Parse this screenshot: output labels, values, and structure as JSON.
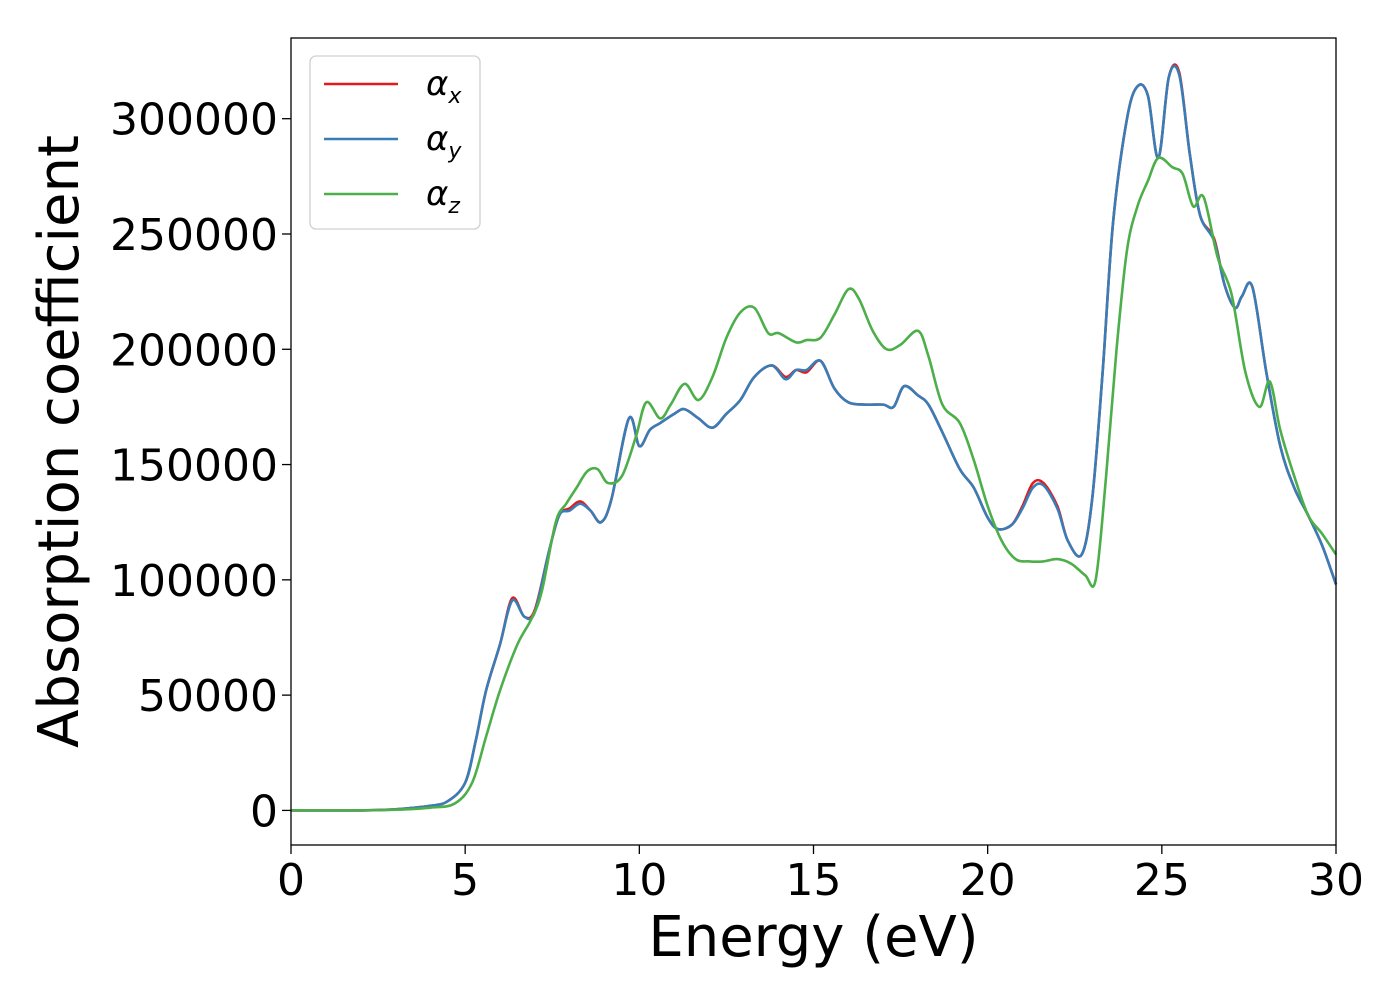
{
  "chart_data": {
    "type": "line",
    "xlabel": "Energy (eV)",
    "ylabel": "Absorption coefficient",
    "xlim": [
      0,
      30
    ],
    "ylim": [
      -15000,
      335000
    ],
    "xticks": [
      0,
      5,
      10,
      15,
      20,
      25,
      30
    ],
    "xtick_labels": [
      "0",
      "5",
      "10",
      "15",
      "20",
      "25",
      "30"
    ],
    "yticks": [
      0,
      50000,
      100000,
      150000,
      200000,
      250000,
      300000
    ],
    "ytick_labels": [
      "0",
      "50000",
      "100000",
      "150000",
      "200000",
      "250000",
      "300000"
    ],
    "grid": false,
    "legend_position": "top-left",
    "series": [
      {
        "name": "α",
        "subscript": "x",
        "color": "#e41a1c",
        "x": [
          0,
          2,
          3,
          4,
          4.5,
          5.0,
          5.3,
          5.6,
          6.0,
          6.35,
          6.7,
          7.0,
          7.4,
          7.7,
          8.0,
          8.3,
          8.6,
          8.9,
          9.2,
          9.7,
          10.0,
          10.3,
          10.6,
          11.0,
          11.3,
          11.7,
          12.1,
          12.5,
          12.9,
          13.3,
          13.8,
          14.2,
          14.5,
          14.8,
          15.2,
          15.6,
          16.0,
          16.5,
          17.0,
          17.3,
          17.6,
          18.0,
          18.3,
          18.7,
          19.2,
          19.6,
          20.0,
          20.3,
          20.7,
          21.0,
          21.3,
          21.6,
          22.0,
          22.3,
          22.7,
          23.0,
          23.3,
          23.6,
          24.0,
          24.3,
          24.6,
          24.9,
          25.2,
          25.5,
          25.8,
          26.1,
          26.5,
          26.8,
          27.1,
          27.3,
          27.6,
          28.0,
          28.4,
          28.8,
          29.2,
          29.6,
          30.0
        ],
        "y": [
          0,
          0,
          500,
          2000,
          4000,
          12000,
          30000,
          52000,
          72000,
          92000,
          84000,
          87000,
          112000,
          128000,
          131000,
          134000,
          130000,
          125000,
          135000,
          170000,
          158000,
          165000,
          168000,
          172000,
          174000,
          170000,
          166000,
          172000,
          178000,
          188000,
          193000,
          188000,
          191000,
          190000,
          195000,
          183000,
          177000,
          176000,
          176000,
          175000,
          184000,
          180000,
          176000,
          164000,
          148000,
          140000,
          127000,
          122000,
          124000,
          132000,
          142000,
          142000,
          132000,
          117000,
          111000,
          135000,
          190000,
          255000,
          300000,
          314000,
          310000,
          283000,
          318000,
          320000,
          285000,
          258000,
          248000,
          228000,
          218000,
          223000,
          227000,
          190000,
          158000,
          140000,
          128000,
          115000,
          98000
        ]
      },
      {
        "name": "α",
        "subscript": "y",
        "color": "#377eb8",
        "x": [
          0,
          2,
          3,
          4,
          4.5,
          5.0,
          5.3,
          5.6,
          6.0,
          6.35,
          6.7,
          7.0,
          7.4,
          7.7,
          8.0,
          8.3,
          8.6,
          8.9,
          9.2,
          9.7,
          10.0,
          10.3,
          10.6,
          11.0,
          11.3,
          11.7,
          12.1,
          12.5,
          12.9,
          13.3,
          13.8,
          14.2,
          14.5,
          14.8,
          15.2,
          15.6,
          16.0,
          16.5,
          17.0,
          17.3,
          17.6,
          18.0,
          18.3,
          18.7,
          19.2,
          19.6,
          20.0,
          20.3,
          20.7,
          21.0,
          21.3,
          21.6,
          22.0,
          22.3,
          22.7,
          23.0,
          23.3,
          23.6,
          24.0,
          24.3,
          24.6,
          24.9,
          25.2,
          25.5,
          25.8,
          26.1,
          26.5,
          26.8,
          27.1,
          27.3,
          27.6,
          28.0,
          28.4,
          28.8,
          29.2,
          29.6,
          30.0
        ],
        "y": [
          0,
          0,
          500,
          2000,
          4000,
          12000,
          30000,
          52000,
          72000,
          91000,
          84000,
          86000,
          112000,
          128000,
          130000,
          133000,
          130000,
          125000,
          135000,
          170000,
          158000,
          165000,
          168000,
          172000,
          174000,
          170000,
          166000,
          172000,
          178000,
          188000,
          193000,
          187000,
          191000,
          191000,
          195000,
          183000,
          177000,
          176000,
          176000,
          175000,
          184000,
          180000,
          176000,
          164000,
          148000,
          140000,
          127000,
          122000,
          124000,
          131000,
          140000,
          141000,
          131000,
          117000,
          111000,
          135000,
          190000,
          255000,
          300000,
          314000,
          310000,
          283000,
          318000,
          319000,
          285000,
          258000,
          247000,
          228000,
          218000,
          223000,
          227000,
          190000,
          158000,
          140000,
          128000,
          115000,
          98000
        ]
      },
      {
        "name": "α",
        "subscript": "z",
        "color": "#4daf4a",
        "x": [
          0,
          2,
          3,
          4,
          4.7,
          5.2,
          5.6,
          6.0,
          6.5,
          6.9,
          7.2,
          7.6,
          7.9,
          8.2,
          8.5,
          8.8,
          9.1,
          9.5,
          9.9,
          10.2,
          10.6,
          10.9,
          11.3,
          11.7,
          12.1,
          12.5,
          12.9,
          13.3,
          13.7,
          14.0,
          14.5,
          14.8,
          15.2,
          15.6,
          16.0,
          16.3,
          16.7,
          17.1,
          17.5,
          18.0,
          18.3,
          18.7,
          19.2,
          19.6,
          20.0,
          20.4,
          20.8,
          21.2,
          21.6,
          22.0,
          22.4,
          22.8,
          23.1,
          23.4,
          23.7,
          24.0,
          24.3,
          24.6,
          24.9,
          25.3,
          25.6,
          25.9,
          26.2,
          26.6,
          27.0,
          27.4,
          27.8,
          28.1,
          28.4,
          28.8,
          29.2,
          29.6,
          30.0
        ],
        "y": [
          0,
          0,
          300,
          1200,
          3000,
          12000,
          32000,
          52000,
          72000,
          83000,
          95000,
          125000,
          133000,
          140000,
          147000,
          148000,
          142000,
          145000,
          162000,
          177000,
          170000,
          176000,
          185000,
          178000,
          188000,
          205000,
          216000,
          218000,
          207000,
          207000,
          203000,
          204000,
          205000,
          215000,
          226000,
          222000,
          208000,
          200000,
          202000,
          208000,
          197000,
          176000,
          168000,
          152000,
          132000,
          117000,
          109000,
          108000,
          108000,
          109000,
          107000,
          102000,
          100000,
          145000,
          200000,
          243000,
          262000,
          273000,
          283000,
          279000,
          276000,
          262000,
          266000,
          240000,
          224000,
          190000,
          175000,
          186000,
          165000,
          145000,
          128000,
          120000,
          111000
        ]
      }
    ]
  }
}
